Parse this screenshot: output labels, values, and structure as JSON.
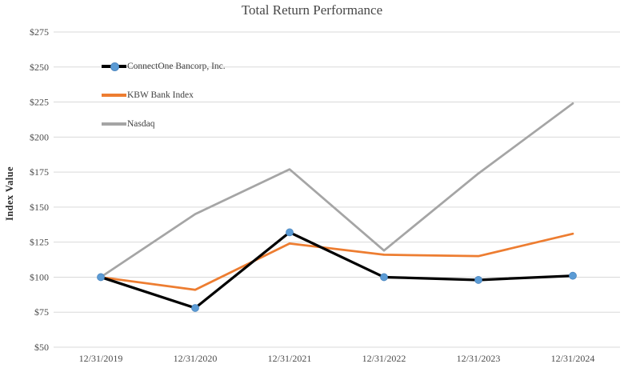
{
  "chart": {
    "title": "Total Return Performance",
    "y_axis_title": "Index Value"
  },
  "chart_data": {
    "type": "line",
    "title": "Total Return Performance",
    "xlabel": "",
    "ylabel": "Index Value",
    "categories": [
      "12/31/2019",
      "12/31/2020",
      "12/31/2021",
      "12/31/2022",
      "12/31/2023",
      "12/31/2024"
    ],
    "series": [
      {
        "name": "ConnectOne Bancorp, Inc.",
        "color": "#000000",
        "line_width": 3.25,
        "marker": "circle",
        "marker_color": "#5B9BD5",
        "marker_edge": "#4E88C0",
        "values": [
          100,
          78,
          132,
          100,
          98,
          101
        ]
      },
      {
        "name": "KBW Bank Index",
        "color": "#ED7D31",
        "line_width": 2.75,
        "marker": "none",
        "values": [
          100,
          91,
          124,
          116,
          115,
          131
        ]
      },
      {
        "name": "Nasdaq",
        "color": "#A5A5A5",
        "line_width": 2.75,
        "marker": "none",
        "values": [
          100,
          145,
          177,
          119,
          174,
          224
        ]
      }
    ],
    "ylim": [
      50,
      275
    ],
    "ytick_step": 25,
    "ytick_prefix": "$",
    "grid": "horizontal",
    "gridline_color": "#D9D9D9",
    "tick_label_color": "#4d4d4d",
    "legend_position": "upper-left-inside"
  }
}
